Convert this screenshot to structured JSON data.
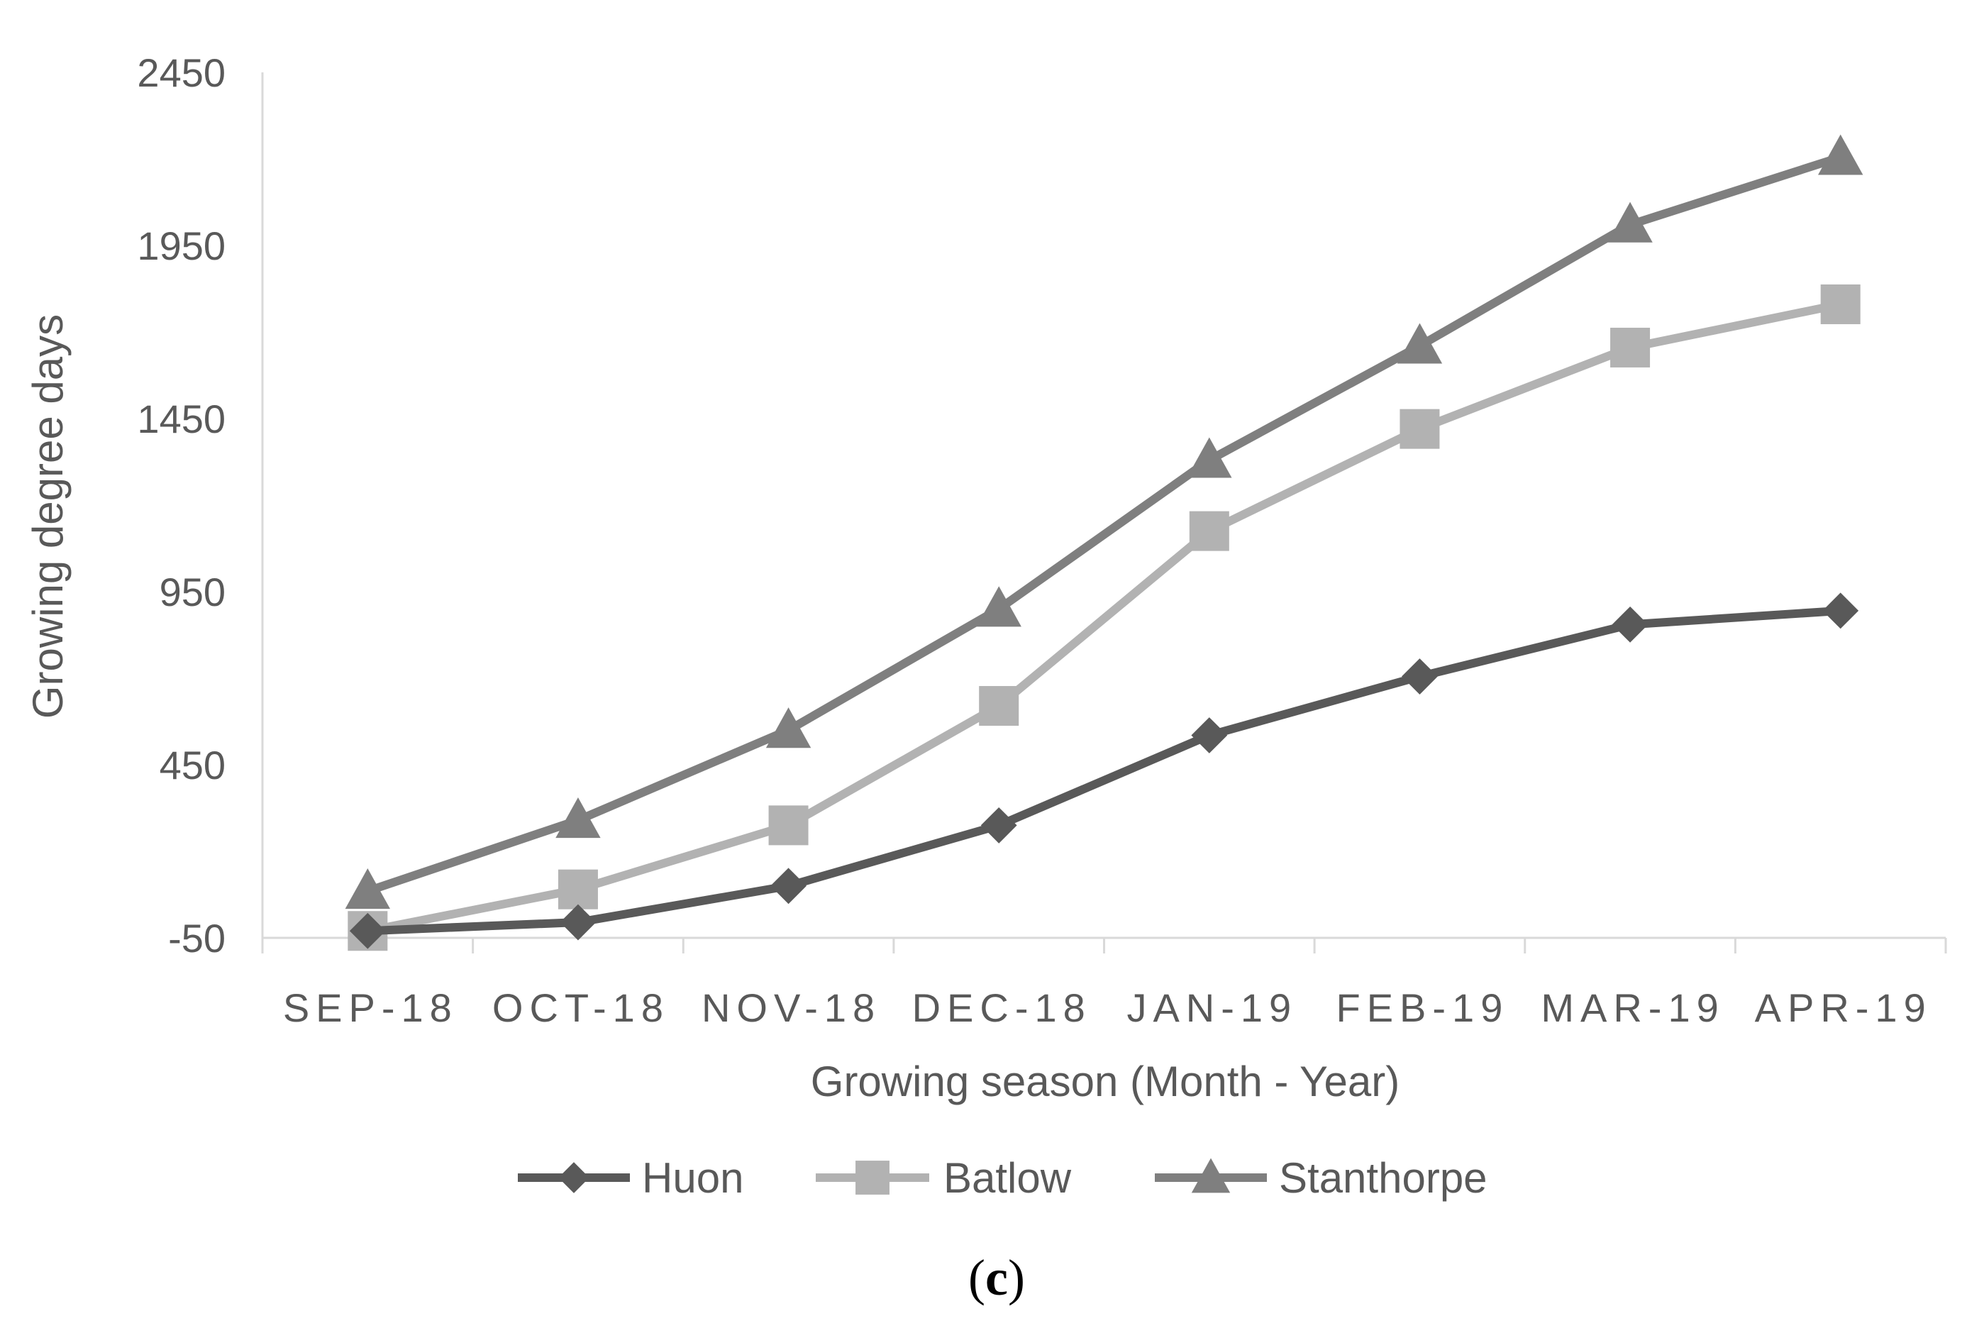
{
  "chart_data": {
    "type": "line",
    "categories": [
      "SEP-18",
      "OCT-18",
      "NOV-18",
      "DEC-18",
      "JAN-19",
      "FEB-19",
      "MAR-19",
      "APR-19"
    ],
    "series": [
      {
        "name": "Huon",
        "marker": "diamond",
        "color": "#595959",
        "values": [
          -30,
          -5,
          100,
          275,
          535,
          705,
          855,
          895
        ]
      },
      {
        "name": "Batlow",
        "marker": "square",
        "color": "#b2b2b2",
        "values": [
          -30,
          90,
          275,
          620,
          1125,
          1420,
          1655,
          1780
        ]
      },
      {
        "name": "Stanthorpe",
        "marker": "triangle",
        "color": "#7f7f7f",
        "values": [
          85,
          290,
          550,
          900,
          1330,
          1660,
          2010,
          2205
        ]
      }
    ],
    "xlabel": "Growing season (Month - Year)",
    "ylabel": "Growing degree days",
    "ylim": [
      -50,
      2450
    ],
    "yticks": [
      -50,
      450,
      950,
      1450,
      1950,
      2450
    ],
    "grid": false,
    "legend": "bottom",
    "caption_open": "(",
    "caption_letter": "c",
    "caption_close": ")"
  }
}
